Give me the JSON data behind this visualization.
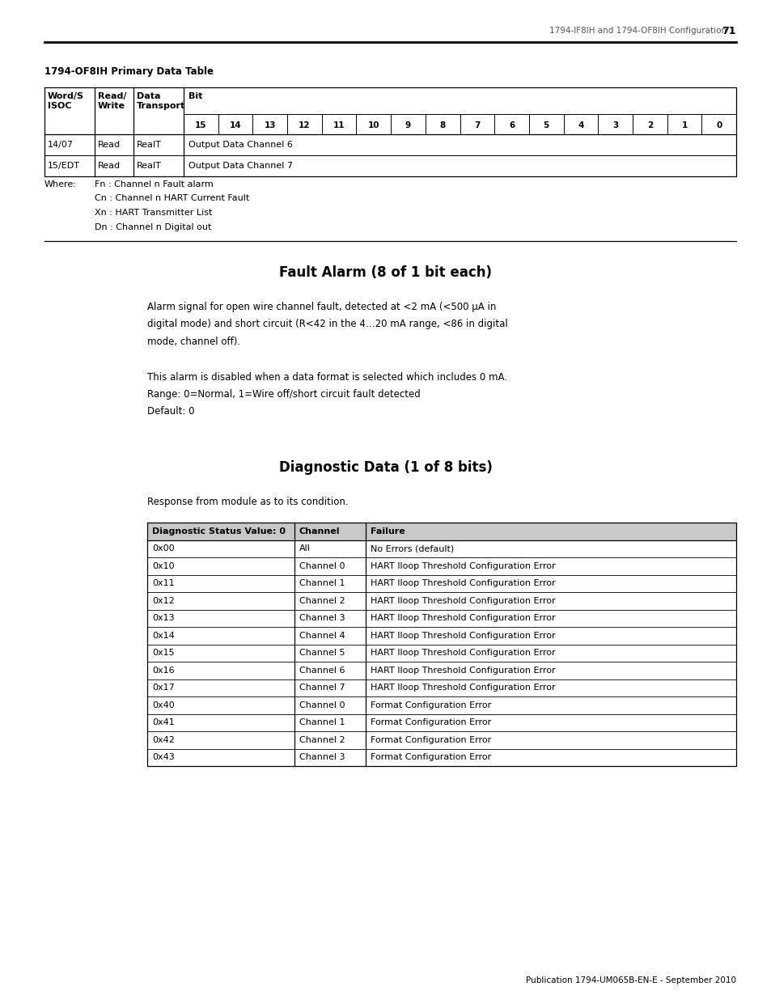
{
  "page_width": 9.54,
  "page_height": 12.35,
  "bg_color": "#ffffff",
  "header_text": "1794-IF8IH and 1794-OF8IH Configuration",
  "header_page": "71",
  "section_title_top": "1794-OF8IH Primary Data Table",
  "bit_labels": [
    "15",
    "14",
    "13",
    "12",
    "11",
    "10",
    "9",
    "8",
    "7",
    "6",
    "5",
    "4",
    "3",
    "2",
    "1",
    "0"
  ],
  "primary_rows": [
    [
      "14/07",
      "Read",
      "RealT",
      "Output Data Channel 6"
    ],
    [
      "15/EDT",
      "Read",
      "RealT",
      "Output Data Channel 7"
    ]
  ],
  "where_text": [
    "Fn : Channel n Fault alarm",
    "Cn : Channel n HART Current Fault",
    "Xn : HART Transmitter List",
    "Dn : Channel n Digital out"
  ],
  "section1_title": "Fault Alarm (8 of 1 bit each)",
  "section1_para1": "Alarm signal for open wire channel fault, detected at <2 mA (<500 μA in\ndigital mode) and short circuit (R<42 in the 4…20 mA range, <86 in digital\nmode, channel off).",
  "section1_para2": "This alarm is disabled when a data format is selected which includes 0 mA.\nRange: 0=Normal, 1=Wire off/short circuit fault detected\nDefault: 0",
  "section2_title": "Diagnostic Data (1 of 8 bits)",
  "section2_intro": "Response from module as to its condition.",
  "diag_headers": [
    "Diagnostic Status Value: 0",
    "Channel",
    "Failure"
  ],
  "diag_rows": [
    [
      "0x00",
      "All",
      "No Errors (default)"
    ],
    [
      "0x10",
      "Channel 0",
      "HART Iloop Threshold Configuration Error"
    ],
    [
      "0x11",
      "Channel 1",
      "HART Iloop Threshold Configuration Error"
    ],
    [
      "0x12",
      "Channel 2",
      "HART Iloop Threshold Configuration Error"
    ],
    [
      "0x13",
      "Channel 3",
      "HART Iloop Threshold Configuration Error"
    ],
    [
      "0x14",
      "Channel 4",
      "HART Iloop Threshold Configuration Error"
    ],
    [
      "0x15",
      "Channel 5",
      "HART Iloop Threshold Configuration Error"
    ],
    [
      "0x16",
      "Channel 6",
      "HART Iloop Threshold Configuration Error"
    ],
    [
      "0x17",
      "Channel 7",
      "HART Iloop Threshold Configuration Error"
    ],
    [
      "0x40",
      "Channel 0",
      "Format Configuration Error"
    ],
    [
      "0x41",
      "Channel 1",
      "Format Configuration Error"
    ],
    [
      "0x42",
      "Channel 2",
      "Format Configuration Error"
    ],
    [
      "0x43",
      "Channel 3",
      "Format Configuration Error"
    ]
  ],
  "footer_text": "Publication 1794-UM065B-EN-E - September 2010"
}
